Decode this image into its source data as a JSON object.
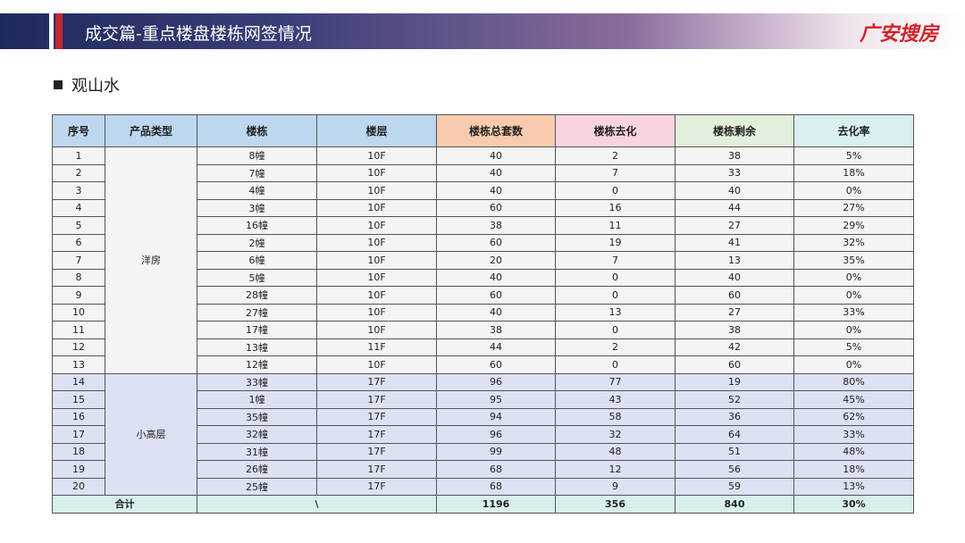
{
  "header": {
    "title": "成交篇-重点楼盘楼栋网签情况",
    "logo": "广安搜房"
  },
  "section": "观山水",
  "table": {
    "headers": [
      "序号",
      "产品类型",
      "楼栋",
      "楼层",
      "楼栋总套数",
      "楼栋去化",
      "楼栋剩余",
      "去化率"
    ],
    "groups": [
      {
        "type": "洋房",
        "rows": [
          [
            1,
            "8幢",
            "10F",
            40,
            2,
            38,
            "5%"
          ],
          [
            2,
            "7幢",
            "10F",
            40,
            7,
            33,
            "18%"
          ],
          [
            3,
            "4幢",
            "10F",
            40,
            0,
            40,
            "0%"
          ],
          [
            4,
            "3幢",
            "10F",
            60,
            16,
            44,
            "27%"
          ],
          [
            5,
            "16幢",
            "10F",
            38,
            11,
            27,
            "29%"
          ],
          [
            6,
            "2幢",
            "10F",
            60,
            19,
            41,
            "32%"
          ],
          [
            7,
            "6幢",
            "10F",
            20,
            7,
            13,
            "35%"
          ],
          [
            8,
            "5幢",
            "10F",
            40,
            0,
            40,
            "0%"
          ],
          [
            9,
            "28幢",
            "10F",
            60,
            0,
            60,
            "0%"
          ],
          [
            10,
            "27幢",
            "10F",
            40,
            13,
            27,
            "33%"
          ],
          [
            11,
            "17幢",
            "10F",
            38,
            0,
            38,
            "0%"
          ],
          [
            12,
            "13幢",
            "11F",
            44,
            2,
            42,
            "5%"
          ],
          [
            13,
            "12幢",
            "10F",
            60,
            0,
            60,
            "0%"
          ]
        ]
      },
      {
        "type": "小高层",
        "rows": [
          [
            14,
            "33幢",
            "17F",
            96,
            77,
            19,
            "80%"
          ],
          [
            15,
            "1幢",
            "17F",
            95,
            43,
            52,
            "45%"
          ],
          [
            16,
            "35幢",
            "17F",
            94,
            58,
            36,
            "62%"
          ],
          [
            17,
            "32幢",
            "17F",
            96,
            32,
            64,
            "33%"
          ],
          [
            18,
            "31幢",
            "17F",
            99,
            48,
            51,
            "48%"
          ],
          [
            19,
            "26幢",
            "17F",
            68,
            12,
            56,
            "18%"
          ],
          [
            20,
            "25幢",
            "17F",
            68,
            9,
            59,
            "13%"
          ]
        ]
      }
    ],
    "total": {
      "label": "合计",
      "building": "\\",
      "total": 1196,
      "sold": 356,
      "remain": 840,
      "rate": "30%"
    }
  }
}
